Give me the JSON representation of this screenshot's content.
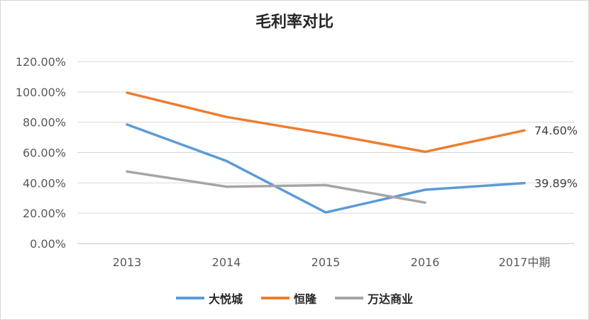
{
  "chart_data": {
    "type": "line",
    "title": "毛利率对比",
    "categories": [
      "2013",
      "2014",
      "2015",
      "2016",
      "2017中期"
    ],
    "ylim": [
      0,
      120
    ],
    "yticks": [
      0,
      20,
      40,
      60,
      80,
      100,
      120
    ],
    "ytick_labels": [
      "0.00%",
      "20.00%",
      "40.00%",
      "60.00%",
      "80.00%",
      "100.00%",
      "120.00%"
    ],
    "grid": true,
    "legend_position": "bottom",
    "series": [
      {
        "name": "大悦城",
        "color": "#5B9BD5",
        "values": [
          78.5,
          54.5,
          20.5,
          35.5,
          39.89
        ],
        "end_label": "39.89%"
      },
      {
        "name": "恒隆",
        "color": "#ED7D31",
        "values": [
          99.5,
          83.5,
          72.5,
          60.5,
          74.6
        ],
        "end_label": "74.60%"
      },
      {
        "name": "万达商业",
        "color": "#A5A5A5",
        "values": [
          47.5,
          37.5,
          38.5,
          27.0,
          null
        ],
        "end_label": null
      }
    ]
  }
}
